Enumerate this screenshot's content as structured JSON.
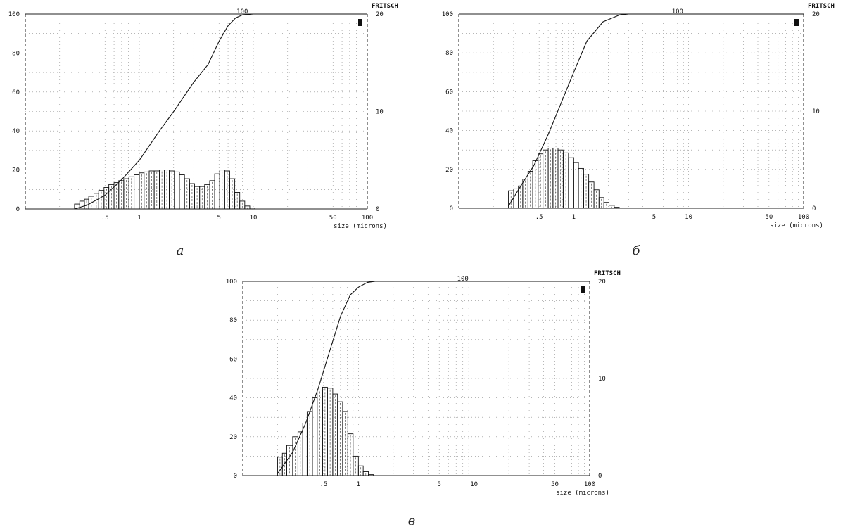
{
  "chart_data": [
    {
      "type": "bar",
      "panel_label": "а",
      "brand_label": "FRITSCH",
      "legend_marker": "0",
      "xlabel": "size (microns)",
      "x_scale": "log",
      "xlim": [
        0.1,
        100
      ],
      "x_ticks": [
        ".5",
        "1",
        "5",
        "10",
        "50",
        "100"
      ],
      "x_tick_values": [
        0.5,
        1,
        5,
        10,
        50,
        100
      ],
      "y_left_ticks": [
        "0",
        "20",
        "40",
        "60",
        "80",
        "100"
      ],
      "y_left_range": [
        0,
        100
      ],
      "y_right_ticks": [
        "0",
        "10",
        "20"
      ],
      "y_right_range": [
        0,
        20
      ],
      "top_label": "100",
      "histogram": {
        "bin_edges": [
          0.27,
          0.3,
          0.33,
          0.36,
          0.4,
          0.44,
          0.49,
          0.54,
          0.6,
          0.66,
          0.73,
          0.81,
          0.9,
          1.0,
          1.1,
          1.22,
          1.35,
          1.5,
          1.66,
          1.83,
          2.03,
          2.25,
          2.49,
          2.76,
          3.05,
          3.38,
          3.74,
          4.14,
          4.58,
          5.07,
          5.61,
          6.21,
          6.87,
          7.6,
          8.41,
          9.31,
          10.3
        ],
        "values": [
          0.5,
          0.8,
          1.0,
          1.3,
          1.6,
          1.9,
          2.2,
          2.5,
          2.7,
          2.9,
          3.1,
          3.3,
          3.5,
          3.7,
          3.8,
          3.9,
          3.9,
          4.0,
          4.0,
          3.9,
          3.8,
          3.5,
          3.1,
          2.6,
          2.3,
          2.3,
          2.5,
          2.9,
          3.6,
          4.0,
          3.9,
          3.1,
          1.7,
          0.8,
          0.3,
          0.1
        ]
      },
      "cumulative": {
        "x": [
          0.27,
          0.35,
          0.5,
          0.7,
          1.0,
          1.5,
          2.0,
          3.0,
          4.0,
          5.0,
          6.0,
          7.0,
          8.0,
          10.0,
          100.0
        ],
        "y": [
          0,
          2,
          7,
          15,
          25,
          40,
          50,
          65,
          74,
          86,
          94,
          98,
          99.5,
          100,
          100
        ]
      }
    },
    {
      "type": "bar",
      "panel_label": "б",
      "brand_label": "FRITSCH",
      "legend_marker": "0",
      "xlabel": "size (microns)",
      "x_scale": "log",
      "xlim": [
        0.1,
        100
      ],
      "x_ticks": [
        ".5",
        "1",
        "5",
        "10",
        "50",
        "100"
      ],
      "x_tick_values": [
        0.5,
        1,
        5,
        10,
        50,
        100
      ],
      "y_left_ticks": [
        "0",
        "20",
        "40",
        "60",
        "80",
        "100"
      ],
      "y_left_range": [
        0,
        100
      ],
      "y_right_ticks": [
        "0",
        "10",
        "20"
      ],
      "y_right_range": [
        0,
        20
      ],
      "top_label": "100",
      "histogram": {
        "bin_edges": [
          0.27,
          0.3,
          0.33,
          0.36,
          0.4,
          0.44,
          0.49,
          0.54,
          0.6,
          0.66,
          0.73,
          0.81,
          0.9,
          1.0,
          1.1,
          1.22,
          1.35,
          1.5,
          1.66,
          1.83,
          2.03,
          2.25,
          2.49
        ],
        "values": [
          1.8,
          2.0,
          2.3,
          3.0,
          3.8,
          4.9,
          5.6,
          6.0,
          6.2,
          6.2,
          6.0,
          5.7,
          5.2,
          4.7,
          4.1,
          3.5,
          2.7,
          1.9,
          1.1,
          0.6,
          0.3,
          0.1
        ]
      },
      "cumulative": {
        "x": [
          0.27,
          0.35,
          0.45,
          0.6,
          0.8,
          1.0,
          1.3,
          1.8,
          2.5,
          3.0,
          100.0
        ],
        "y": [
          1,
          12,
          22,
          38,
          56,
          70,
          86,
          96,
          99.5,
          100,
          100
        ]
      }
    },
    {
      "type": "bar",
      "panel_label": "в",
      "brand_label": "FRITSCH",
      "legend_marker": "0",
      "xlabel": "size (microns)",
      "x_scale": "log",
      "xlim": [
        0.1,
        100
      ],
      "x_ticks": [
        ".5",
        "1",
        "5",
        "10",
        "50",
        "100"
      ],
      "x_tick_values": [
        0.5,
        1,
        5,
        10,
        50,
        100
      ],
      "y_left_ticks": [
        "0",
        "20",
        "40",
        "60",
        "80",
        "100"
      ],
      "y_left_range": [
        0,
        100
      ],
      "y_right_ticks": [
        "0",
        "10",
        "20"
      ],
      "y_right_range": [
        0,
        20
      ],
      "top_label": "100",
      "histogram": {
        "bin_edges": [
          0.2,
          0.22,
          0.24,
          0.27,
          0.3,
          0.33,
          0.36,
          0.4,
          0.44,
          0.49,
          0.54,
          0.6,
          0.66,
          0.73,
          0.81,
          0.9,
          1.0,
          1.1,
          1.22,
          1.35
        ],
        "values": [
          1.9,
          2.3,
          3.1,
          4.0,
          4.5,
          5.4,
          6.6,
          8.0,
          8.8,
          9.1,
          9.0,
          8.4,
          7.6,
          6.6,
          4.3,
          2.0,
          1.0,
          0.4,
          0.1
        ]
      },
      "cumulative": {
        "x": [
          0.2,
          0.27,
          0.35,
          0.45,
          0.55,
          0.7,
          0.85,
          1.0,
          1.2,
          1.4,
          100.0
        ],
        "y": [
          1,
          12,
          27,
          45,
          62,
          82,
          93,
          97,
          99.5,
          100,
          100
        ]
      }
    }
  ]
}
